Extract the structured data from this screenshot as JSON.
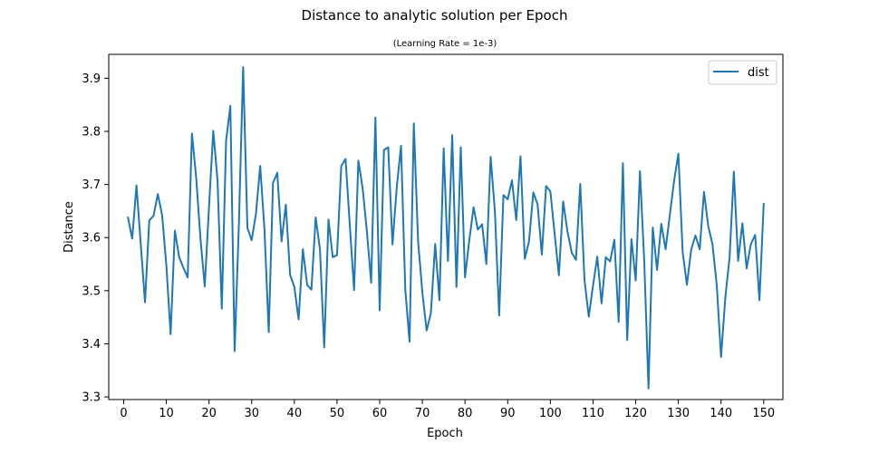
{
  "chart_data": {
    "type": "line",
    "title": "Distance to analytic solution per Epoch",
    "subtitle": "(Learning Rate = 1e-3)",
    "xlabel": "Epoch",
    "ylabel": "Distance",
    "xlim": [
      -3.5,
      154.5
    ],
    "ylim": [
      3.295,
      3.945
    ],
    "xticks": [
      0,
      10,
      20,
      30,
      40,
      50,
      60,
      70,
      80,
      90,
      100,
      110,
      120,
      130,
      140,
      150
    ],
    "yticks": [
      3.3,
      3.4,
      3.5,
      3.6,
      3.7,
      3.8,
      3.9
    ],
    "ytick_labels": [
      "3.3",
      "3.4",
      "3.5",
      "3.6",
      "3.7",
      "3.8",
      "3.9"
    ],
    "grid": false,
    "legend_position": "top-right",
    "series": [
      {
        "name": "dist",
        "color": "#1f77b4",
        "x": [
          1,
          2,
          3,
          4,
          5,
          6,
          7,
          8,
          9,
          10,
          11,
          12,
          13,
          14,
          15,
          16,
          17,
          18,
          19,
          20,
          21,
          22,
          23,
          24,
          25,
          26,
          27,
          28,
          29,
          30,
          31,
          32,
          33,
          34,
          35,
          36,
          37,
          38,
          39,
          40,
          41,
          42,
          43,
          44,
          45,
          46,
          47,
          48,
          49,
          50,
          51,
          52,
          53,
          54,
          55,
          56,
          57,
          58,
          59,
          60,
          61,
          62,
          63,
          64,
          65,
          66,
          67,
          68,
          69,
          70,
          71,
          72,
          73,
          74,
          75,
          76,
          77,
          78,
          79,
          80,
          81,
          82,
          83,
          84,
          85,
          86,
          87,
          88,
          89,
          90,
          91,
          92,
          93,
          94,
          95,
          96,
          97,
          98,
          99,
          100,
          101,
          102,
          103,
          104,
          105,
          106,
          107,
          108,
          109,
          110,
          111,
          112,
          113,
          114,
          115,
          116,
          117,
          118,
          119,
          120,
          121,
          122,
          123,
          124,
          125,
          126,
          127,
          128,
          129,
          130,
          131,
          132,
          133,
          134,
          135,
          136,
          137,
          138,
          139,
          140,
          141,
          142,
          143,
          144,
          145,
          146,
          147,
          148,
          149,
          150
        ],
        "values": [
          3.638,
          3.598,
          3.698,
          3.588,
          3.478,
          3.632,
          3.641,
          3.682,
          3.643,
          3.548,
          3.418,
          3.613,
          3.563,
          3.543,
          3.525,
          3.796,
          3.712,
          3.598,
          3.508,
          3.658,
          3.801,
          3.707,
          3.466,
          3.782,
          3.848,
          3.386,
          3.624,
          3.921,
          3.618,
          3.595,
          3.645,
          3.735,
          3.615,
          3.422,
          3.703,
          3.722,
          3.593,
          3.662,
          3.53,
          3.507,
          3.446,
          3.578,
          3.511,
          3.502,
          3.638,
          3.578,
          3.393,
          3.634,
          3.563,
          3.567,
          3.735,
          3.748,
          3.623,
          3.501,
          3.745,
          3.693,
          3.612,
          3.515,
          3.826,
          3.463,
          3.765,
          3.77,
          3.587,
          3.695,
          3.773,
          3.502,
          3.404,
          3.815,
          3.593,
          3.497,
          3.425,
          3.458,
          3.588,
          3.482,
          3.768,
          3.556,
          3.793,
          3.507,
          3.77,
          3.525,
          3.595,
          3.657,
          3.615,
          3.625,
          3.55,
          3.752,
          3.65,
          3.453,
          3.68,
          3.672,
          3.708,
          3.633,
          3.753,
          3.56,
          3.593,
          3.685,
          3.663,
          3.568,
          3.697,
          3.687,
          3.607,
          3.529,
          3.668,
          3.612,
          3.572,
          3.558,
          3.701,
          3.52,
          3.451,
          3.51,
          3.564,
          3.476,
          3.563,
          3.555,
          3.596,
          3.441,
          3.74,
          3.407,
          3.597,
          3.519,
          3.725,
          3.556,
          3.316,
          3.619,
          3.539,
          3.626,
          3.578,
          3.643,
          3.707,
          3.758,
          3.573,
          3.511,
          3.577,
          3.604,
          3.578,
          3.686,
          3.622,
          3.587,
          3.51,
          3.375,
          3.487,
          3.563,
          3.724,
          3.556,
          3.627,
          3.542,
          3.588,
          3.605,
          3.482,
          3.664
        ]
      }
    ]
  }
}
